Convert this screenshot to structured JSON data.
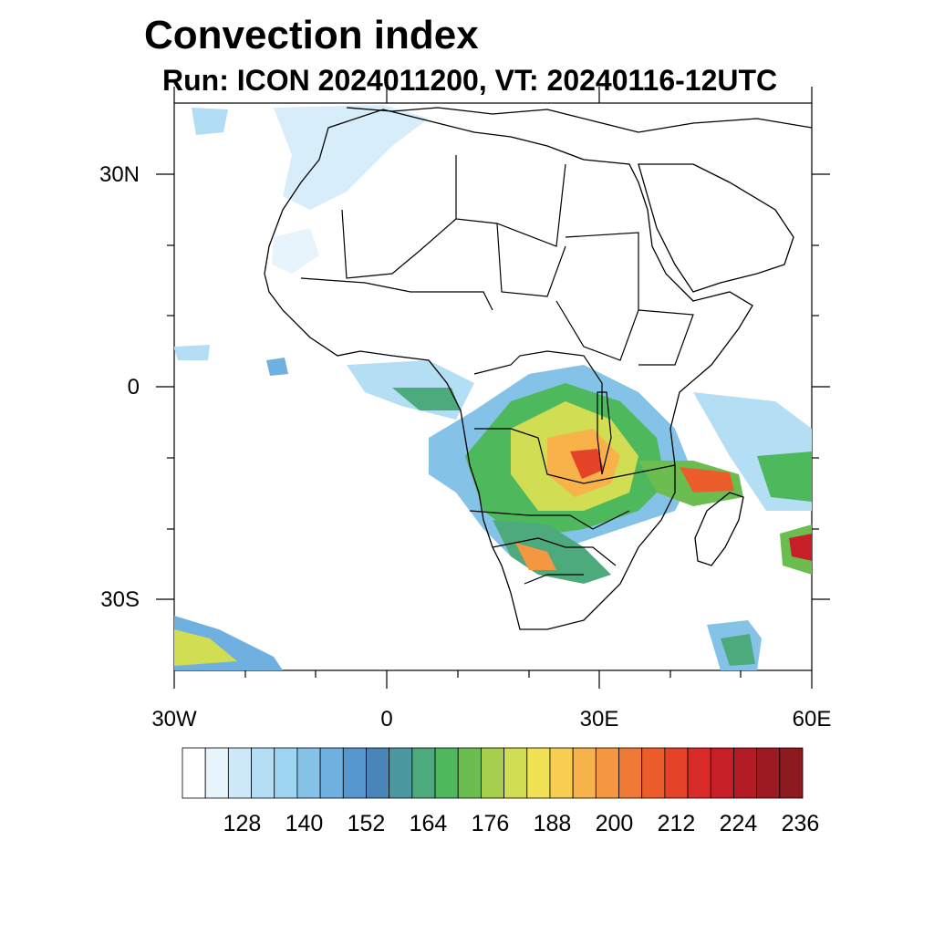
{
  "title": "Convection index",
  "subtitle": "Run: ICON 2024011200,  VT: 20240116-12UTC",
  "map": {
    "lon_range": [
      -30,
      60
    ],
    "lat_range": [
      -40,
      40
    ],
    "x_ticks": [
      {
        "lon": -30,
        "label": "30W"
      },
      {
        "lon": 0,
        "label": "0"
      },
      {
        "lon": 30,
        "label": "30E"
      },
      {
        "lon": 60,
        "label": "60E"
      }
    ],
    "y_ticks": [
      {
        "lat": 30,
        "label": "30N"
      },
      {
        "lat": 0,
        "label": "0"
      },
      {
        "lat": -30,
        "label": "30S"
      }
    ]
  },
  "colorbar": {
    "colors": [
      "#ffffff",
      "#e7f4fb",
      "#cde9f7",
      "#b4def4",
      "#9cd4f1",
      "#84c2e8",
      "#6fb0e0",
      "#5797cf",
      "#4a85b8",
      "#4b98a0",
      "#4daa7d",
      "#4db85c",
      "#6cbd4f",
      "#a7cf4f",
      "#d1dd52",
      "#f0e253",
      "#f7cd52",
      "#f7b24a",
      "#f59640",
      "#f07a35",
      "#eb5e2c",
      "#e44327",
      "#d92b28",
      "#c71f27",
      "#b31b25",
      "#9e1a22",
      "#8c1a1e"
    ],
    "labels": [
      "128",
      "140",
      "152",
      "164",
      "176",
      "188",
      "200",
      "212",
      "224",
      "236"
    ]
  }
}
